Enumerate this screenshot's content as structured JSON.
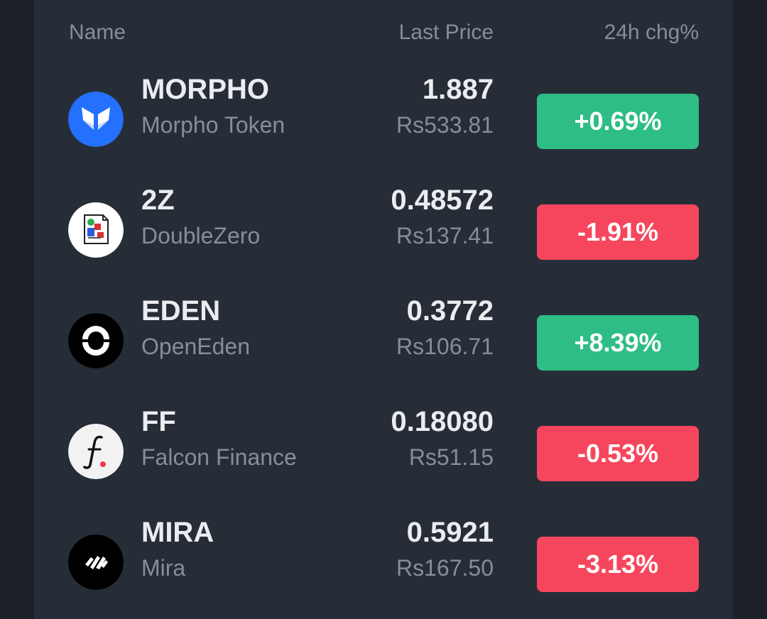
{
  "colors": {
    "background": "#1c2128",
    "panel": "#272d37",
    "text_primary": "#eaecef",
    "text_secondary": "#848e9c",
    "up": "#2ebd85",
    "down": "#f6465d"
  },
  "header": {
    "name": "Name",
    "last_price": "Last Price",
    "change": "24h chg%"
  },
  "rows": [
    {
      "symbol": "MORPHO",
      "name": "Morpho Token",
      "price": "1.887",
      "fiat": "Rs533.81",
      "change": "+0.69%",
      "direction": "up",
      "icon": "morpho-butterfly-icon"
    },
    {
      "symbol": "2Z",
      "name": "DoubleZero",
      "price": "0.48572",
      "fiat": "Rs137.41",
      "change": "-1.91%",
      "direction": "down",
      "icon": "broken-image-icon"
    },
    {
      "symbol": "EDEN",
      "name": "OpenEden",
      "price": "0.3772",
      "fiat": "Rs106.71",
      "change": "+8.39%",
      "direction": "up",
      "icon": "openeden-icon"
    },
    {
      "symbol": "FF",
      "name": "Falcon Finance",
      "price": "0.18080",
      "fiat": "Rs51.15",
      "change": "-0.53%",
      "direction": "down",
      "icon": "falcon-finance-icon"
    },
    {
      "symbol": "MIRA",
      "name": "Mira",
      "price": "0.5921",
      "fiat": "Rs167.50",
      "change": "-3.13%",
      "direction": "down",
      "icon": "mira-icon"
    }
  ]
}
